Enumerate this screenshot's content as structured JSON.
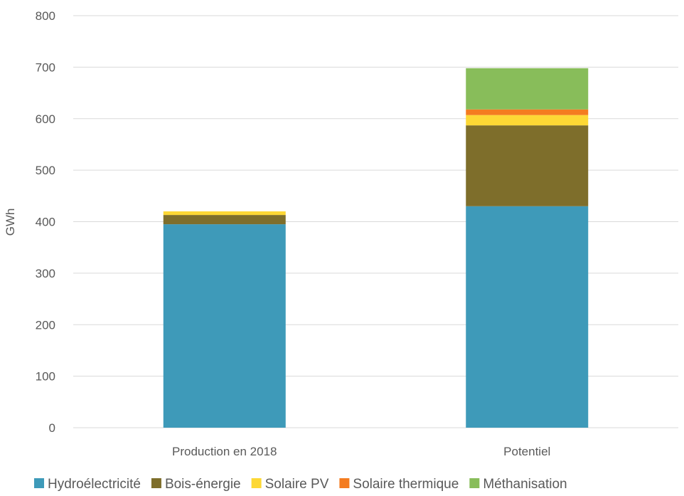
{
  "chart_data": {
    "type": "bar",
    "stacked": true,
    "categories": [
      "Production en 2018",
      "Potentiel"
    ],
    "series": [
      {
        "name": "Hydroélectricité",
        "color": "#3e9ab9",
        "values": [
          395,
          430
        ]
      },
      {
        "name": "Bois-énergie",
        "color": "#7e6e2b",
        "values": [
          18,
          157
        ]
      },
      {
        "name": "Solaire PV",
        "color": "#fdd835",
        "values": [
          7,
          20
        ]
      },
      {
        "name": "Solaire thermique",
        "color": "#f47c20",
        "values": [
          0,
          11
        ]
      },
      {
        "name": "Méthanisation",
        "color": "#88bd5a",
        "values": [
          0,
          80
        ]
      }
    ],
    "ylabel": "GWh",
    "ylim": [
      0,
      800
    ],
    "yticks": [
      0,
      100,
      200,
      300,
      400,
      500,
      600,
      700,
      800
    ],
    "grid": true,
    "legend": "bottom"
  }
}
